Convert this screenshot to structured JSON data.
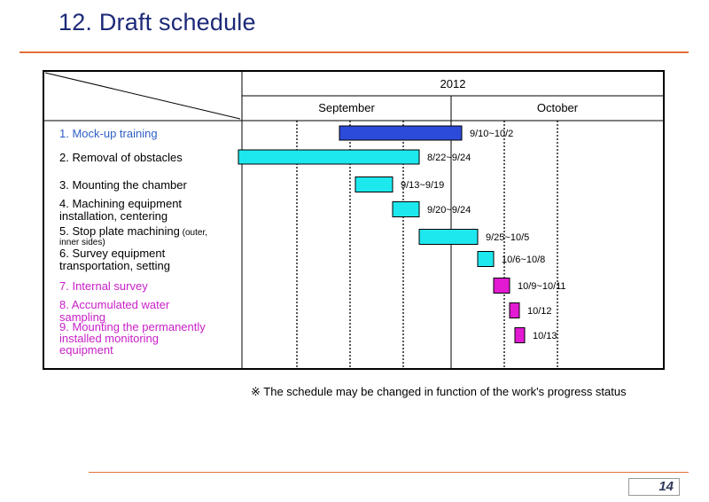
{
  "slide": {
    "title": "12. Draft schedule",
    "note_mark": "※",
    "note": "The schedule may be changed in function of the work's progress status",
    "page_number": "14"
  },
  "colors": {
    "title": "#1c2a78",
    "rule": "#e2703a",
    "blue_text": "#2f5fc4",
    "magenta_text": "#c81fc8",
    "bar_blue": "#2c4bd8",
    "bar_cyan": "#1de8ee",
    "bar_magenta": "#e21ad2"
  },
  "chart_data": {
    "type": "gantt",
    "year": "2012",
    "months": [
      {
        "label": "September",
        "start": "9/1",
        "end": "9/30"
      },
      {
        "label": "October",
        "start": "10/1",
        "end": "10/14"
      }
    ],
    "x_range": [
      "8/22",
      "10/14"
    ],
    "tasks": [
      {
        "lines": [
          "1. Mock-up training"
        ],
        "start": "9/10",
        "end": "10/2",
        "range_label": "9/10~10/2",
        "label_color": "blue",
        "bar_color": "blue"
      },
      {
        "lines": [
          "2. Removal of obstacles"
        ],
        "start": "8/22",
        "end": "9/24",
        "range_label": "8/22~9/24",
        "label_color": "black",
        "bar_color": "cyan"
      },
      {
        "lines": [
          "3. Mounting the chamber"
        ],
        "start": "9/13",
        "end": "9/19",
        "range_label": "9/13~9/19",
        "label_color": "black",
        "bar_color": "cyan"
      },
      {
        "lines": [
          "4. Machining equipment",
          "installation, centering"
        ],
        "start": "9/20",
        "end": "9/24",
        "range_label": "9/20~9/24",
        "label_color": "black",
        "bar_color": "cyan"
      },
      {
        "lines": [
          "5. Stop plate machining",
          "inner sides)"
        ],
        "suffix": "(outer,",
        "start": "9/25",
        "end": "10/5",
        "range_label": "9/25~10/5",
        "label_color": "black",
        "bar_color": "cyan"
      },
      {
        "lines": [
          "6. Survey equipment",
          "transportation, setting"
        ],
        "start": "10/6",
        "end": "10/8",
        "range_label": "10/6~10/8",
        "label_color": "black",
        "bar_color": "cyan"
      },
      {
        "lines": [
          "7. Internal survey"
        ],
        "start": "10/9",
        "end": "10/11",
        "range_label": "10/9~10/11",
        "label_color": "magenta",
        "bar_color": "magenta"
      },
      {
        "lines": [
          "8. Accumulated water",
          "sampling"
        ],
        "start": "10/12",
        "end": "10/12",
        "range_label": "10/12",
        "label_color": "magenta",
        "bar_color": "magenta"
      },
      {
        "lines": [
          "9. Mounting the permanently",
          "installed monitoring",
          "equipment"
        ],
        "start": "10/13",
        "end": "10/13",
        "range_label": "10/13",
        "label_color": "magenta",
        "bar_color": "magenta"
      }
    ]
  }
}
